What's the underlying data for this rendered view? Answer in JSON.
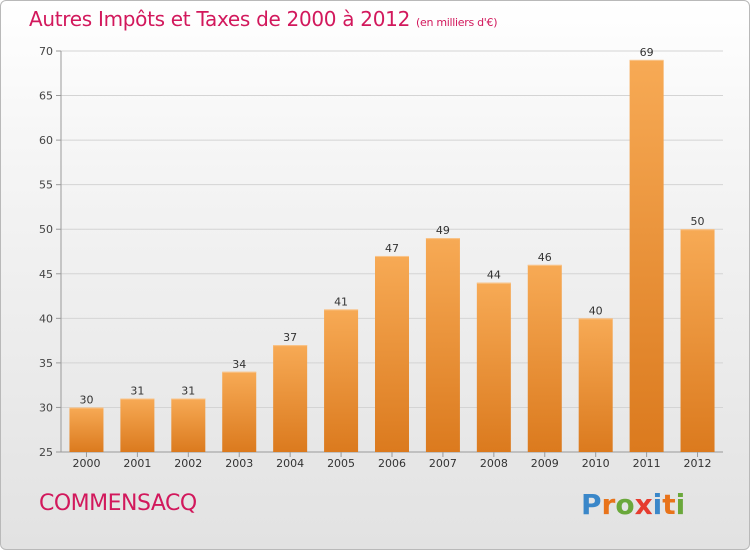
{
  "title": "Autres Impôts et Taxes de 2000 à 2012",
  "unit": "(en milliers d'€)",
  "commune": "COMMENSACQ",
  "logo": "Proxiti",
  "colors": {
    "title": "#d2185c",
    "bar_light": "#f5a652",
    "bar_dark": "#dc7a20"
  },
  "chart_data": {
    "type": "bar",
    "title": "Autres Impôts et Taxes de 2000 à 2012",
    "ylabel": "",
    "xlabel": "",
    "categories": [
      "2000",
      "2001",
      "2002",
      "2003",
      "2004",
      "2005",
      "2006",
      "2007",
      "2008",
      "2009",
      "2010",
      "2011",
      "2012"
    ],
    "values": [
      30,
      31,
      31,
      34,
      37,
      41,
      47,
      49,
      44,
      46,
      40,
      69,
      50
    ],
    "ylim": [
      25,
      70
    ],
    "yticks": [
      25,
      30,
      35,
      40,
      45,
      50,
      55,
      60,
      65,
      70
    ],
    "grid": true,
    "data_labels": true
  }
}
